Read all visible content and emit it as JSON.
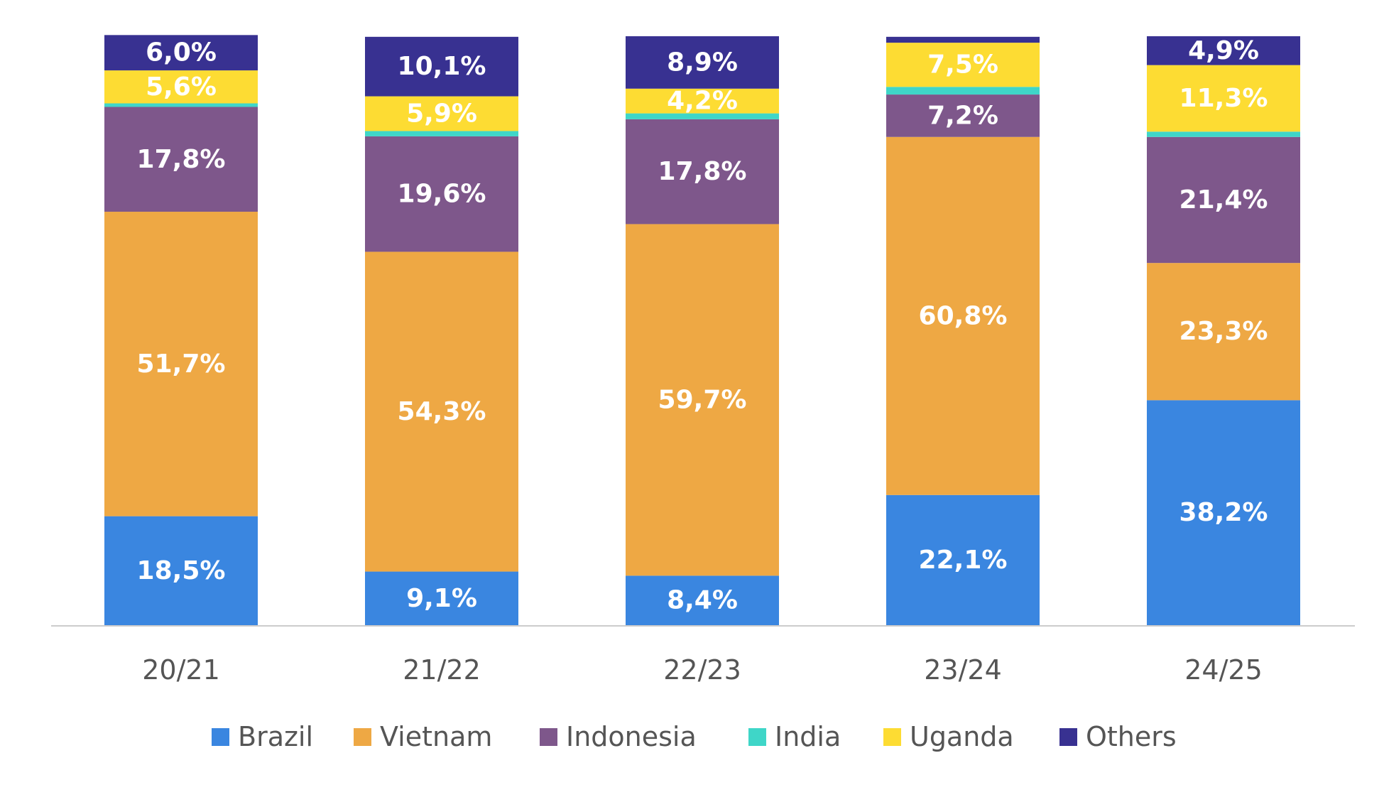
{
  "chart_data": {
    "type": "bar",
    "stacked": true,
    "categories": [
      "20/21",
      "21/22",
      "22/23",
      "23/24",
      "24/25"
    ],
    "series": [
      {
        "name": "Brazil",
        "color": "#3a86e0",
        "values": [
          18.5,
          9.1,
          8.4,
          22.1,
          38.2
        ],
        "labels": [
          "18,5%",
          "9,1%",
          "8,4%",
          "22,1%",
          "38,2%"
        ]
      },
      {
        "name": "Vietnam",
        "color": "#eea844",
        "values": [
          51.7,
          54.3,
          59.7,
          60.8,
          23.3
        ],
        "labels": [
          "51,7%",
          "54,3%",
          "59,7%",
          "60,8%",
          "23,3%"
        ]
      },
      {
        "name": "Indonesia",
        "color": "#7e578b",
        "values": [
          17.8,
          19.6,
          17.8,
          7.2,
          21.4
        ],
        "labels": [
          "17,8%",
          "19,6%",
          "17,8%",
          "7,2%",
          "21,4%"
        ]
      },
      {
        "name": "India",
        "color": "#3fd6c8",
        "values": [
          0.6,
          0.9,
          1.0,
          1.3,
          0.9
        ],
        "labels": [
          "",
          "",
          "",
          "",
          ""
        ]
      },
      {
        "name": "Uganda",
        "color": "#fddc33",
        "values": [
          5.6,
          5.9,
          4.2,
          7.5,
          11.3
        ],
        "labels": [
          "5,6%",
          "5,9%",
          "4,2%",
          "7,5%",
          "11,3%"
        ]
      },
      {
        "name": "Others",
        "color": "#383191",
        "values": [
          6.0,
          10.1,
          8.9,
          1.0,
          4.9
        ],
        "labels": [
          "6,0%",
          "10,1%",
          "8,9%",
          "",
          "4,9%"
        ]
      }
    ],
    "ylim": [
      0,
      100
    ],
    "title": "",
    "xlabel": "",
    "ylabel": "",
    "grid": false,
    "legend": "bottom",
    "axis_color": "#cccccc"
  }
}
